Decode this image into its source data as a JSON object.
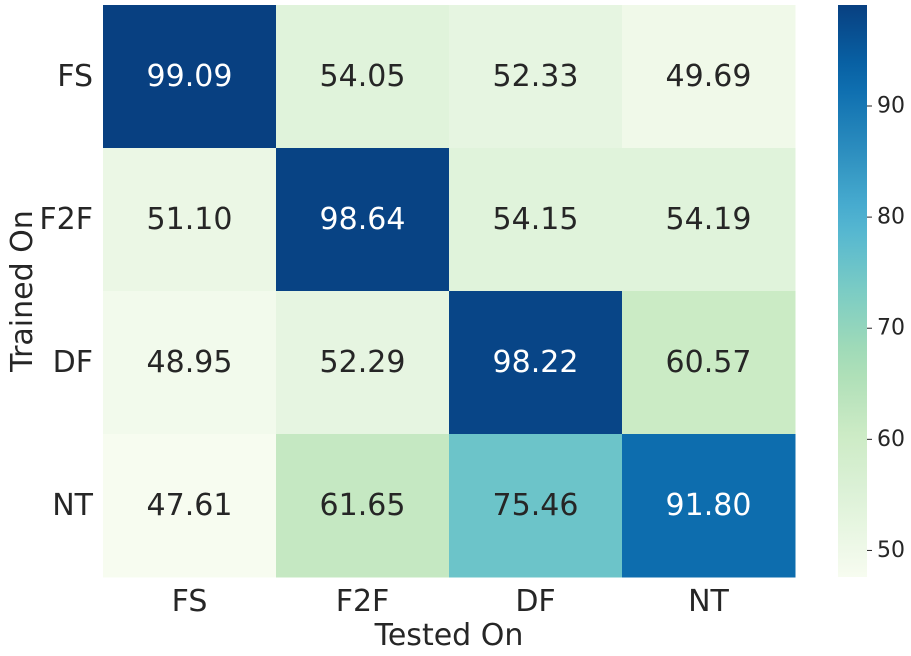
{
  "chart_data": {
    "type": "heatmap",
    "x_categories": [
      "FS",
      "F2F",
      "DF",
      "NT"
    ],
    "y_categories": [
      "FS",
      "F2F",
      "DF",
      "NT"
    ],
    "values": [
      [
        99.09,
        54.05,
        52.33,
        49.69
      ],
      [
        51.1,
        98.64,
        54.15,
        54.19
      ],
      [
        48.95,
        52.29,
        98.22,
        60.57
      ],
      [
        47.61,
        61.65,
        75.46,
        91.8
      ]
    ],
    "value_labels": [
      [
        "99.09",
        "54.05",
        "52.33",
        "49.69"
      ],
      [
        "51.10",
        "98.64",
        "54.15",
        "54.19"
      ],
      [
        "48.95",
        "52.29",
        "98.22",
        "60.57"
      ],
      [
        "47.61",
        "61.65",
        "75.46",
        "91.80"
      ]
    ],
    "xlabel": "Tested On",
    "ylabel": "Trained On",
    "colorbar": {
      "colormap": "GnBu",
      "range": [
        47.61,
        99.09
      ],
      "ticks": [
        50,
        60,
        70,
        80,
        90
      ],
      "tick_labels": [
        "50",
        "60",
        "70",
        "80",
        "90"
      ]
    },
    "text_colors": {
      "dark": "#262626",
      "light": "#ffffff"
    }
  }
}
